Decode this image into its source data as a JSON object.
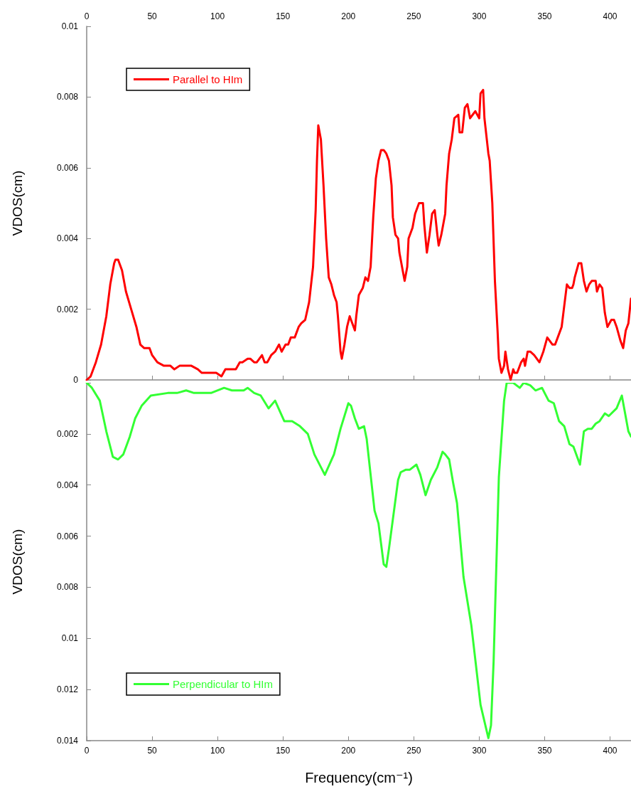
{
  "chart_data": [
    {
      "type": "line",
      "ylabel": "VDOS(cm)",
      "xlim": [
        0,
        416
      ],
      "xticks": [
        0,
        50,
        100,
        150,
        200,
        250,
        300,
        350,
        400
      ],
      "ylim": [
        0,
        0.01
      ],
      "yticks": [
        0,
        0.002,
        0.004,
        0.006,
        0.008,
        0.01
      ],
      "legend": "top left",
      "marker": "none",
      "series": [
        {
          "name": "Parallel to HIm",
          "color": "#ff0000",
          "x": [
            0,
            3,
            7,
            11,
            15,
            18,
            21,
            22,
            24,
            27,
            30,
            34,
            38,
            41,
            44,
            48,
            50,
            54,
            59,
            61,
            64,
            67,
            71,
            74,
            78,
            80,
            85,
            88,
            92,
            97,
            99,
            103,
            106,
            109,
            112,
            114,
            117,
            119,
            123,
            125,
            128,
            130,
            134,
            136,
            138,
            141,
            144,
            147,
            149,
            152,
            154,
            156,
            159,
            162,
            164,
            167,
            170,
            173,
            175,
            176,
            177,
            179,
            181,
            183,
            185,
            187,
            189,
            191,
            192,
            194,
            195,
            197,
            199,
            201,
            203,
            205,
            206,
            208,
            211,
            213,
            215,
            217,
            219,
            221,
            223,
            225,
            227,
            229,
            231,
            233,
            234,
            236,
            238,
            239,
            242,
            243,
            245,
            246,
            249,
            251,
            254,
            257,
            258,
            260,
            262,
            264,
            266,
            268,
            269,
            271,
            274,
            275,
            277,
            279,
            281,
            284,
            285,
            287,
            289,
            291,
            293,
            295,
            297,
            300,
            301,
            303,
            304,
            307,
            308,
            310,
            312,
            314,
            315,
            317,
            319,
            320,
            322,
            324,
            326,
            327,
            329,
            332,
            334,
            335,
            337,
            339,
            342,
            344,
            346,
            349,
            352,
            354,
            356,
            358,
            360,
            363,
            365,
            367,
            369,
            371,
            372,
            373,
            376,
            378,
            380,
            382,
            384,
            386,
            389,
            390,
            392,
            394,
            396,
            398,
            401,
            403,
            405,
            408,
            410,
            412,
            414,
            416
          ],
          "values": [
            0,
            0.0001,
            0.0005,
            0.001,
            0.0018,
            0.0027,
            0.0033,
            0.0034,
            0.0034,
            0.0031,
            0.0025,
            0.002,
            0.0015,
            0.001,
            0.0009,
            0.0009,
            0.0007,
            0.0005,
            0.0004,
            0.0004,
            0.0004,
            0.0003,
            0.0004,
            0.0004,
            0.0004,
            0.0004,
            0.0003,
            0.0002,
            0.0002,
            0.0002,
            0.0002,
            0.0001,
            0.0003,
            0.0003,
            0.0003,
            0.0003,
            0.0005,
            0.0005,
            0.0006,
            0.0006,
            0.0005,
            0.0005,
            0.0007,
            0.0005,
            0.0005,
            0.0007,
            0.0008,
            0.001,
            0.0008,
            0.001,
            0.001,
            0.0012,
            0.0012,
            0.0015,
            0.0016,
            0.0017,
            0.0022,
            0.0032,
            0.0048,
            0.0062,
            0.0072,
            0.0068,
            0.0055,
            0.004,
            0.0029,
            0.0027,
            0.0024,
            0.0022,
            0.0018,
            0.0008,
            0.0006,
            0.001,
            0.0015,
            0.0018,
            0.0016,
            0.0014,
            0.0018,
            0.0024,
            0.0026,
            0.0029,
            0.0028,
            0.0032,
            0.0046,
            0.0057,
            0.0062,
            0.0065,
            0.0065,
            0.0064,
            0.0062,
            0.0055,
            0.0046,
            0.0041,
            0.004,
            0.0036,
            0.003,
            0.0028,
            0.0032,
            0.004,
            0.0043,
            0.0047,
            0.005,
            0.005,
            0.0044,
            0.0036,
            0.0041,
            0.0047,
            0.0048,
            0.0041,
            0.0038,
            0.0041,
            0.0047,
            0.0055,
            0.0064,
            0.0068,
            0.0074,
            0.0075,
            0.007,
            0.007,
            0.0077,
            0.0078,
            0.0074,
            0.0075,
            0.0076,
            0.0074,
            0.0081,
            0.0082,
            0.0074,
            0.0064,
            0.0062,
            0.005,
            0.0028,
            0.0014,
            0.0006,
            0.0002,
            0.0004,
            0.0008,
            0.0003,
            0,
            0.0003,
            0.0002,
            0.0002,
            0.0005,
            0.0006,
            0.0004,
            0.0008,
            0.0008,
            0.0007,
            0.0006,
            0.0005,
            0.0008,
            0.0012,
            0.0011,
            0.001,
            0.001,
            0.0012,
            0.0015,
            0.0021,
            0.0027,
            0.0026,
            0.0026,
            0.0027,
            0.0029,
            0.0033,
            0.0033,
            0.0028,
            0.0025,
            0.0027,
            0.0028,
            0.0028,
            0.0025,
            0.0027,
            0.0026,
            0.0019,
            0.0015,
            0.0017,
            0.0017,
            0.0015,
            0.0011,
            0.0009,
            0.0014,
            0.0016,
            0.0023
          ]
        }
      ]
    },
    {
      "type": "line",
      "xlabel": "Frequency(cm⁻¹)",
      "ylabel": "VDOS(cm)",
      "xlim": [
        0,
        416
      ],
      "xticks": [
        0,
        50,
        100,
        150,
        200,
        250,
        300,
        350,
        400
      ],
      "ylim": [
        0.014,
        0
      ],
      "yticks": [
        {
          "value": 0,
          "label": null
        },
        0.002,
        0.004,
        0.006,
        0.008,
        0.01,
        0.012,
        0.014
      ],
      "legend": "bottom left",
      "marker": "none",
      "series": [
        {
          "name": "Perpendicular to HIm",
          "color": "#33ff33",
          "x": [
            0,
            4,
            10,
            15,
            20,
            24,
            28,
            33,
            37,
            42,
            49,
            62,
            69,
            76,
            82,
            87,
            95,
            105,
            111,
            117,
            120,
            123,
            128,
            133,
            139,
            144,
            151,
            157,
            163,
            169,
            174,
            182,
            189,
            194,
            200,
            202,
            205,
            208,
            212,
            214,
            220,
            223,
            227,
            229,
            231,
            238,
            240,
            244,
            247,
            252,
            255,
            259,
            263,
            268,
            272,
            274,
            277,
            280,
            283,
            288,
            294,
            301,
            307,
            309,
            311,
            315,
            319,
            321,
            326,
            331,
            334,
            339,
            343,
            348,
            353,
            357,
            361,
            365,
            369,
            372,
            377,
            380,
            383,
            386,
            389,
            392,
            396,
            399,
            405,
            409,
            414,
            416
          ],
          "values": [
            0,
            0.0002,
            0.0007,
            0.0019,
            0.0029,
            0.003,
            0.0028,
            0.0021,
            0.0014,
            0.0009,
            0.0005,
            0.0004,
            0.0004,
            0.0003,
            0.0004,
            0.0004,
            0.0004,
            0.0002,
            0.0003,
            0.0003,
            0.0003,
            0.0002,
            0.0004,
            0.0005,
            0.001,
            0.0007,
            0.0015,
            0.0015,
            0.0017,
            0.002,
            0.0028,
            0.0036,
            0.0028,
            0.0018,
            0.0008,
            0.0009,
            0.0014,
            0.0018,
            0.0017,
            0.0022,
            0.005,
            0.0055,
            0.0071,
            0.0072,
            0.0065,
            0.0038,
            0.0035,
            0.0034,
            0.0034,
            0.0032,
            0.0036,
            0.0044,
            0.0038,
            0.0033,
            0.0027,
            0.0028,
            0.003,
            0.0039,
            0.0047,
            0.0076,
            0.0095,
            0.0126,
            0.0139,
            0.0134,
            0.0109,
            0.0037,
            0.0007,
            0,
            0,
            0.0002,
            0,
            0.0001,
            0.0003,
            0.0002,
            0.0007,
            0.0008,
            0.0015,
            0.0017,
            0.0024,
            0.0025,
            0.0032,
            0.0019,
            0.0018,
            0.0018,
            0.0016,
            0.0015,
            0.0012,
            0.0013,
            0.001,
            0.0005,
            0.0019,
            0.0021
          ]
        }
      ]
    }
  ]
}
